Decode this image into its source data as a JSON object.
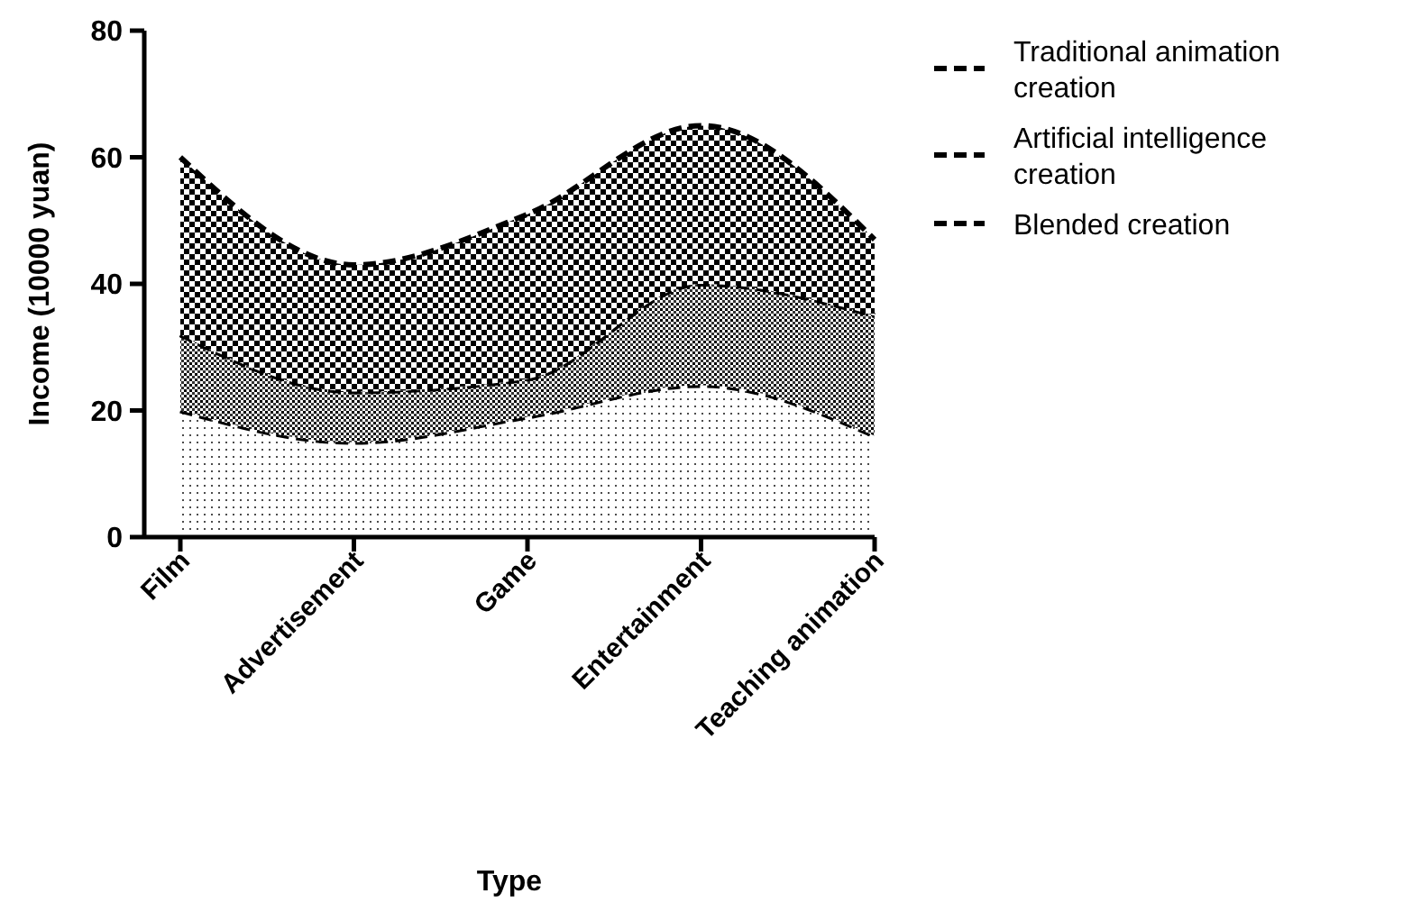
{
  "chart_data": {
    "type": "area",
    "stacked": true,
    "xlabel": "Type",
    "ylabel": "Income (10000 yuan)",
    "categories": [
      "Film",
      "Advertisement",
      "Game",
      "Entertainment",
      "Teaching animation"
    ],
    "series": [
      {
        "name": "Blended creation",
        "color": "#000000",
        "values": [
          20,
          15,
          19,
          24,
          16
        ]
      },
      {
        "name": "Artificial intelligence creation",
        "color": "#000000",
        "values": [
          12,
          8,
          6,
          16,
          19
        ]
      },
      {
        "name": "Traditional animation creation",
        "color": "#000000",
        "values": [
          28,
          20,
          26,
          25,
          12
        ]
      }
    ],
    "ylim": [
      0,
      80
    ],
    "yticks": [
      0,
      20,
      40,
      60,
      80
    ],
    "grid": false,
    "legend": "right",
    "line_style": "dashed"
  }
}
